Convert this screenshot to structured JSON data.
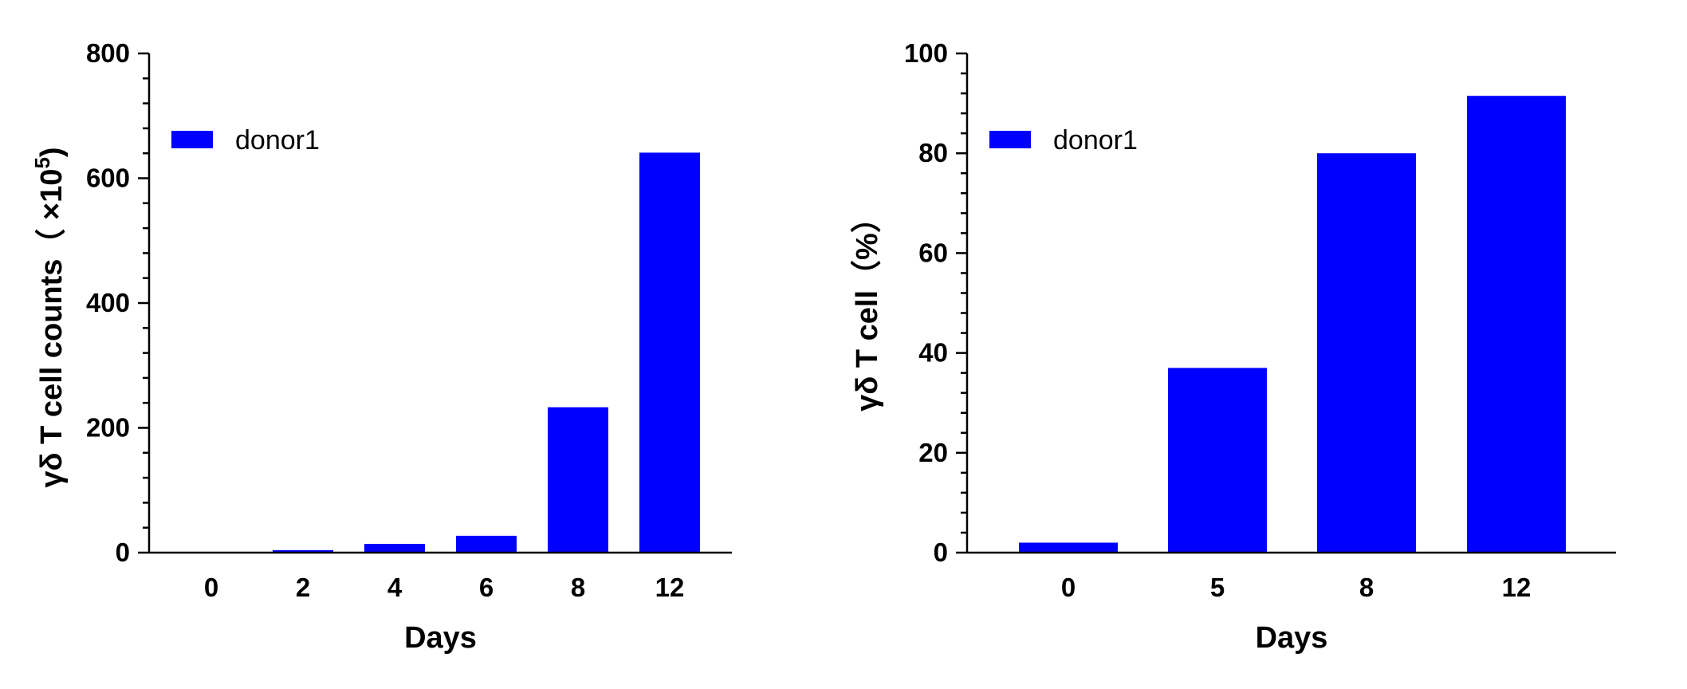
{
  "chart_data": [
    {
      "type": "bar",
      "categories": [
        "0",
        "2",
        "4",
        "6",
        "8",
        "12"
      ],
      "series": [
        {
          "name": "donor1",
          "values": [
            0,
            4,
            14,
            27,
            233,
            641
          ]
        }
      ],
      "xlabel": "Days",
      "ylabel": "γδ T cell counts（ ×10",
      "ylabel_superscript": "5",
      "ylabel_suffix": ")",
      "ylim": [
        0,
        800
      ],
      "yticks": [
        "0",
        "200",
        "400",
        "600",
        "800"
      ],
      "grid": false,
      "legend": "top-left",
      "bar_color": "#0000ff"
    },
    {
      "type": "bar",
      "categories": [
        "0",
        "5",
        "8",
        "12"
      ],
      "series": [
        {
          "name": "donor1",
          "values": [
            2,
            37,
            80,
            91.5
          ]
        }
      ],
      "xlabel": "Days",
      "ylabel": "γδ T cell（%）",
      "ylim": [
        0,
        100
      ],
      "yticks": [
        "0",
        "20",
        "40",
        "60",
        "80",
        "100"
      ],
      "grid": false,
      "legend": "top-left",
      "bar_color": "#0000ff"
    }
  ]
}
